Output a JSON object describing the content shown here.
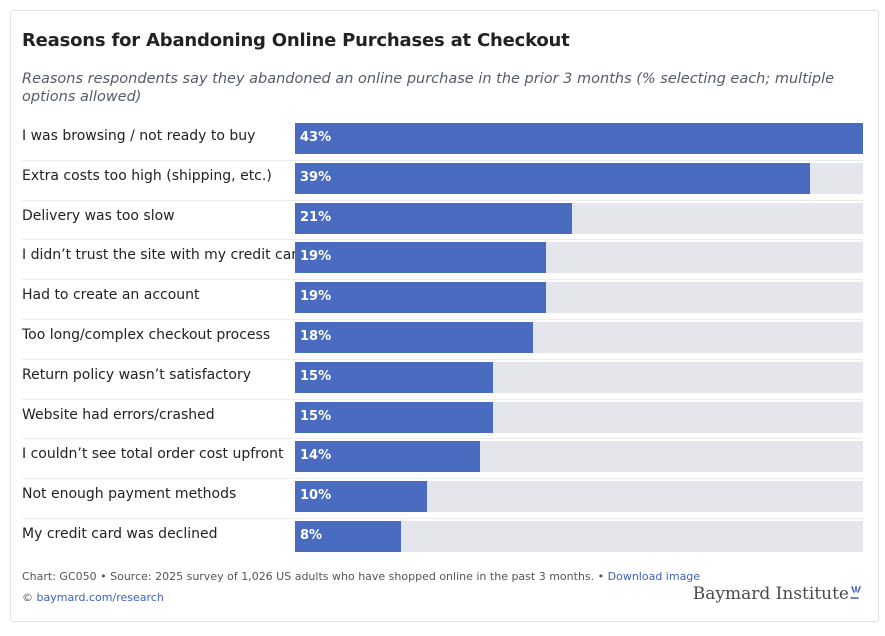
{
  "header": {
    "title": "Reasons for Abandoning Online Purchases at Checkout",
    "subtitle": "Reasons respondents say they abandoned an online purchase in the prior 3 months (% selecting each; multiple options allowed)"
  },
  "colors": {
    "bar": "#4a6cc0",
    "track": "#e4e6ec"
  },
  "chart_data": {
    "type": "bar",
    "orientation": "horizontal",
    "categories": [
      "I was browsing / not ready to buy",
      "Extra costs too high (shipping, etc.)",
      "Delivery was too slow",
      "I didn’t trust the site with my credit card",
      "Had to create an account",
      "Too long/complex checkout process",
      "Return policy wasn’t satisfactory",
      "Website had errors/crashed",
      "I couldn’t see total order cost upfront",
      "Not enough payment methods",
      "My credit card was declined"
    ],
    "values": [
      43,
      39,
      21,
      19,
      19,
      18,
      15,
      15,
      14,
      10,
      8
    ],
    "value_labels": [
      "43%",
      "39%",
      "21%",
      "19%",
      "19%",
      "18%",
      "15%",
      "15%",
      "14%",
      "10%",
      "8%"
    ],
    "xlim": [
      0,
      43
    ]
  },
  "footer": {
    "source_text": "Chart: GC050 • Source: 2025 survey of 1,026 US adults who have shopped online in the past 3 months. •",
    "download_link": "Download image",
    "copyright_prefix": "©",
    "copyright_link": "baymard.com/research"
  },
  "logo": {
    "text": "Baymard Institute",
    "icon": "baymard-logo-icon"
  }
}
